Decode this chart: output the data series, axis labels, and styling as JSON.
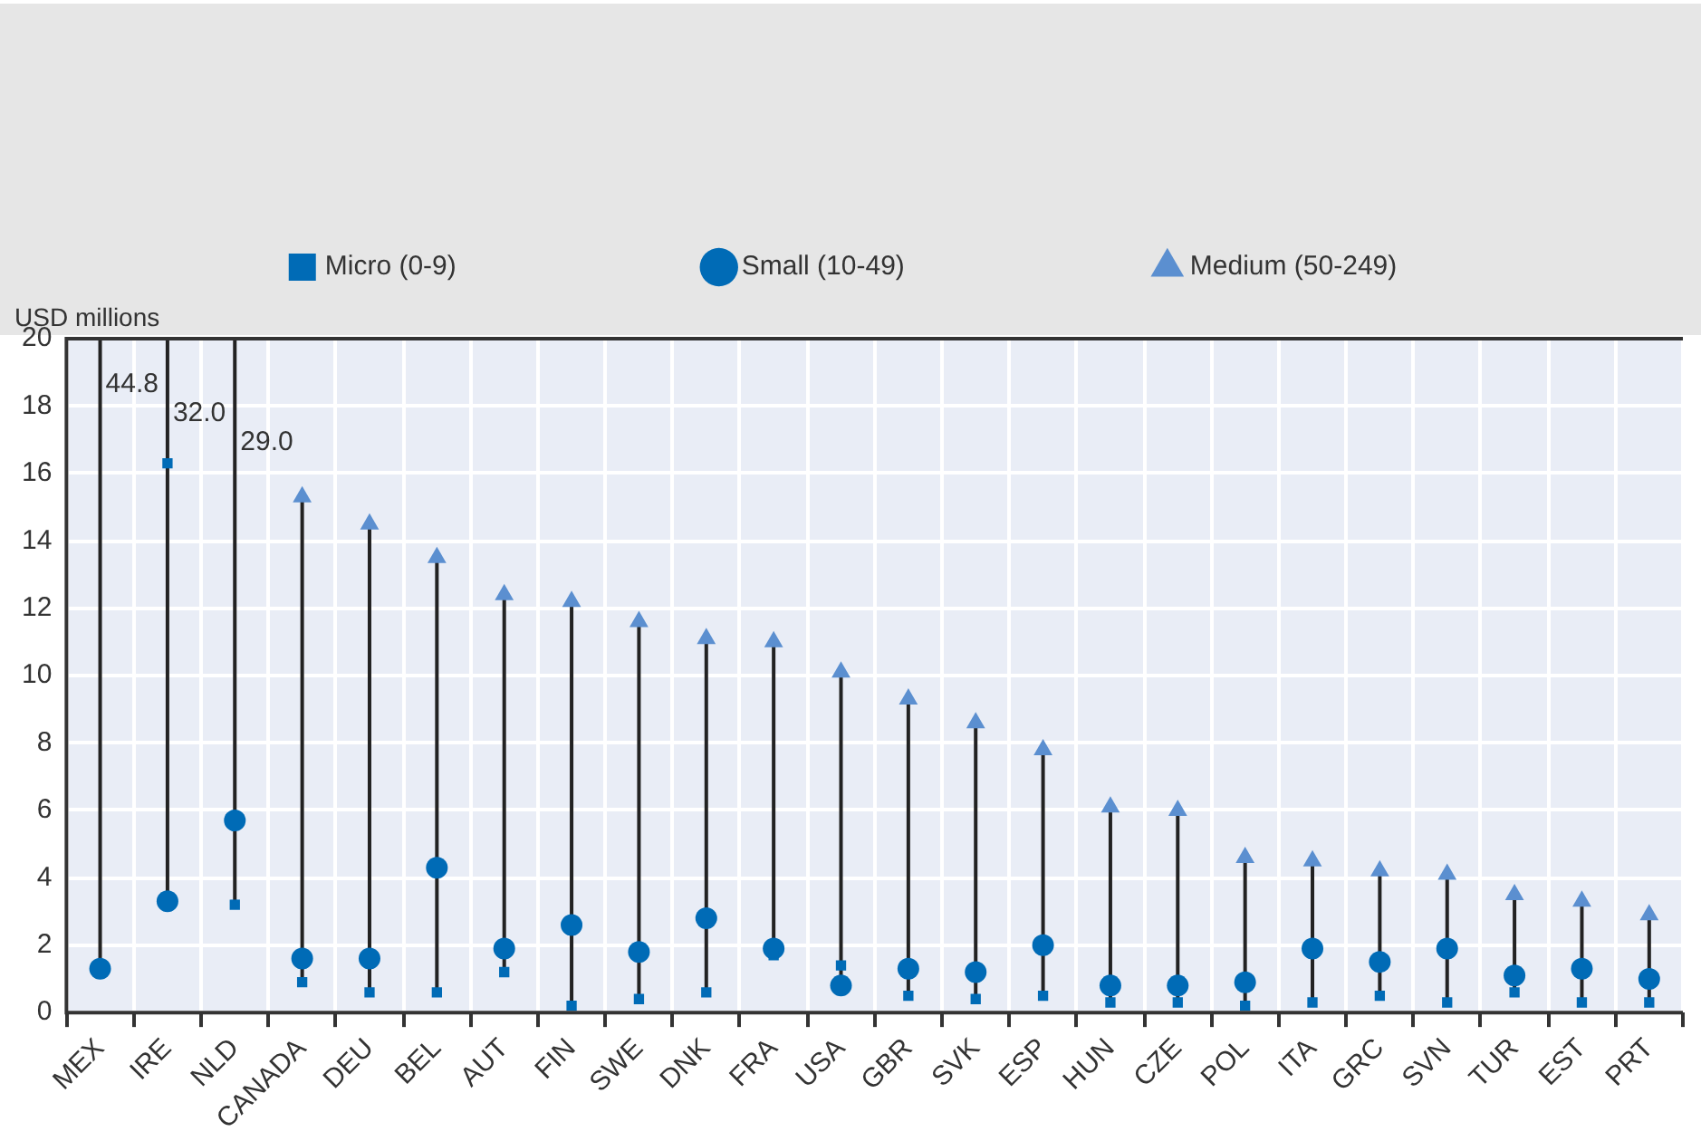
{
  "chart_data": {
    "type": "scatter",
    "ylabel": "USD millions",
    "categories": [
      "MEX",
      "IRE",
      "NLD",
      "CANADA",
      "DEU",
      "BEL",
      "AUT",
      "FIN",
      "SWE",
      "DNK",
      "FRA",
      "USA",
      "GBR",
      "SVK",
      "ESP",
      "HUN",
      "CZE",
      "POL",
      "ITA",
      "GRC",
      "SVN",
      "TUR",
      "EST",
      "PRT"
    ],
    "series": [
      {
        "name": "Micro (0-9)",
        "color": "#006bb6",
        "marker": "square",
        "values": [
          null,
          16.3,
          3.2,
          0.9,
          0.6,
          0.6,
          1.2,
          0.2,
          0.4,
          0.6,
          1.7,
          1.4,
          0.5,
          0.4,
          0.5,
          0.3,
          0.3,
          0.2,
          0.3,
          0.5,
          0.3,
          0.6,
          0.3,
          0.3
        ]
      },
      {
        "name": "Small (10-49)",
        "color": "#006bb6",
        "marker": "circle",
        "values": [
          1.3,
          3.3,
          5.7,
          1.6,
          1.6,
          4.3,
          1.9,
          2.6,
          1.8,
          2.8,
          1.9,
          0.8,
          1.3,
          1.2,
          2.0,
          0.8,
          0.8,
          0.9,
          1.9,
          1.5,
          1.9,
          1.1,
          1.3,
          1.0
        ]
      },
      {
        "name": "Medium (50-249)",
        "color": "#5b8fd0",
        "marker": "triangle",
        "values": [
          null,
          null,
          null,
          15.3,
          14.5,
          13.5,
          12.4,
          12.2,
          11.6,
          11.1,
          11.0,
          10.1,
          9.3,
          8.6,
          7.8,
          6.1,
          6.0,
          4.6,
          4.5,
          4.2,
          4.1,
          3.5,
          3.3,
          2.9
        ]
      }
    ],
    "annotations": [
      "44.8",
      "32.0",
      "29.0"
    ],
    "ylim": [
      0,
      20
    ],
    "yticks": [
      0,
      2,
      4,
      6,
      8,
      10,
      12,
      14,
      16,
      18,
      20
    ],
    "grid": true,
    "legend": "top"
  }
}
